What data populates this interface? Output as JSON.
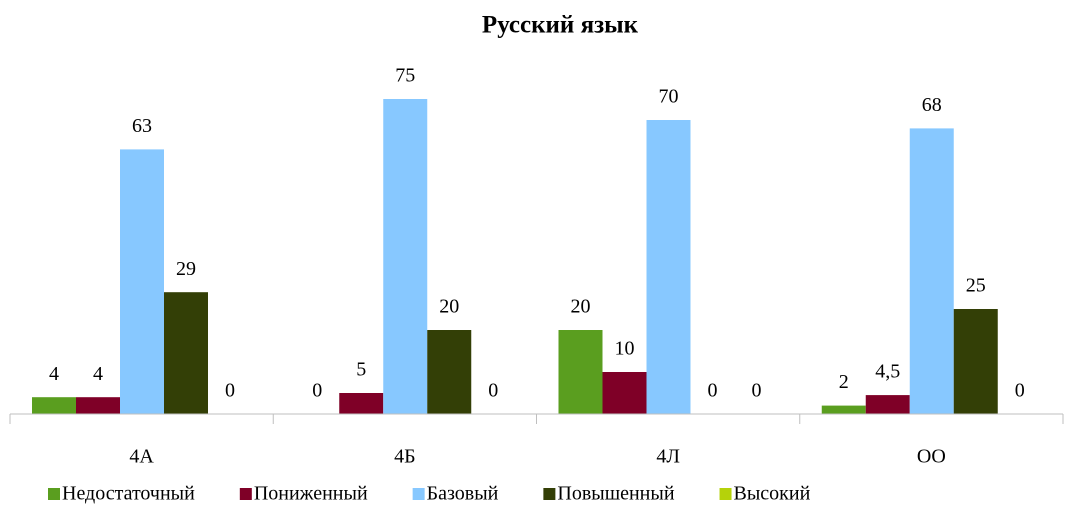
{
  "chart_data": {
    "type": "bar",
    "title": "Русский язык",
    "categories": [
      "4А",
      "4Б",
      "4Л",
      "ОО"
    ],
    "series": [
      {
        "name": "Недостаточный",
        "color": "#5a9e1f",
        "values": [
          4,
          0,
          20,
          2
        ]
      },
      {
        "name": "Пониженный",
        "color": "#7f0027",
        "values": [
          4,
          5,
          10,
          4.5
        ],
        "value_labels": [
          "4",
          "5",
          "10",
          "4,5"
        ]
      },
      {
        "name": "Базовый",
        "color": "#87c8ff",
        "values": [
          63,
          75,
          70,
          68
        ]
      },
      {
        "name": "Повышенный",
        "color": "#333f06",
        "values": [
          29,
          20,
          0,
          25
        ]
      },
      {
        "name": "Высокий",
        "color": "#b5d20a",
        "values": [
          0,
          0,
          0,
          0
        ]
      }
    ],
    "legend": "bottom"
  }
}
